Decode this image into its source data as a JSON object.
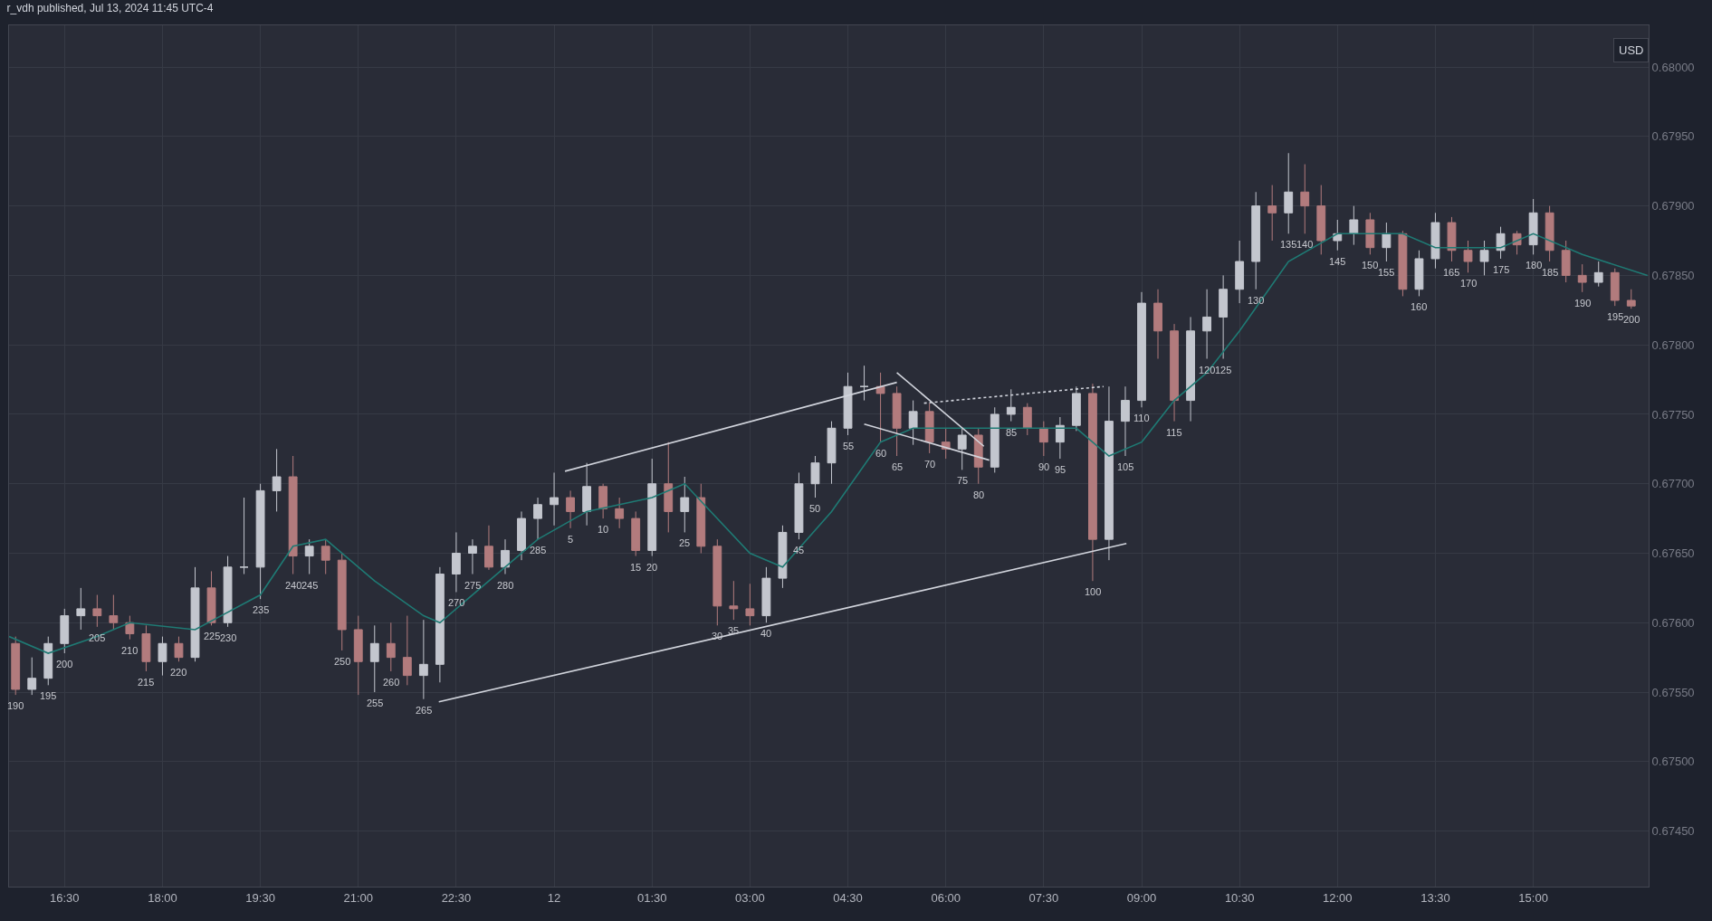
{
  "chart_data": {
    "type": "candlestick",
    "title": "r_vdh published, Jul 13, 2024 11:45 UTC-4",
    "colors": [
      "#b27b7d",
      "#c3c6ce",
      "#c3c6ce",
      "#c3c6ce",
      "#c3c6ce",
      "#b27b7d",
      "#b27b7d",
      "#b27b7d",
      "#b27b7d",
      "#c3c6ce",
      "#b27b7d",
      "#c3c6ce",
      "#b27b7d",
      "#c3c6ce",
      "#c3c6ce",
      "#c3c6ce",
      "#c3c6ce",
      "#b27b7d",
      "#c3c6ce",
      "#b27b7d",
      "#b27b7d",
      "#b27b7d",
      "#c3c6ce",
      "#b27b7d",
      "#b27b7d",
      "#c3c6ce",
      "#c3c6ce",
      "#c3c6ce",
      "#c3c6ce",
      "#b27b7d",
      "#c3c6ce",
      "#c3c6ce",
      "#c3c6ce",
      "#c3c6ce",
      "#b27b7d",
      "#c3c6ce",
      "#b27b7d",
      "#b27b7d",
      "#b27b7d",
      "#c3c6ce",
      "#b27b7d",
      "#c3c6ce",
      "#b27b7d",
      "#b27b7d",
      "#b27b7d",
      "#b27b7d",
      "#c3c6ce",
      "#c3c6ce",
      "#c3c6ce",
      "#c3c6ce",
      "#c3c6ce",
      "#c3c6ce",
      "#c3c6ce",
      "#b27b7d",
      "#b27b7d",
      "#c3c6ce",
      "#b27b7d",
      "#b27b7d",
      "#c3c6ce",
      "#b27b7d",
      "#c3c6ce",
      "#c3c6ce",
      "#b27b7d",
      "#b27b7d",
      "#c3c6ce",
      "#c3c6ce",
      "#b27b7d",
      "#c3c6ce",
      "#c3c6ce",
      "#c3c6ce",
      "#b27b7d",
      "#b27b7d",
      "#c3c6ce",
      "#c3c6ce",
      "#c3c6ce",
      "#c3c6ce",
      "#c3c6ce",
      "#b27b7d",
      "#c3c6ce",
      "#b27b7d",
      "#b27b7d",
      "#c3c6ce",
      "#c3c6ce",
      "#b27b7d",
      "#c3c6ce",
      "#b27b7d",
      "#c3c6ce",
      "#c3c6ce",
      "#b27b7d",
      "#b27b7d",
      "#c3c6ce",
      "#c3c6ce",
      "#b27b7d",
      "#c3c6ce",
      "#b27b7d",
      "#b27b7d",
      "#b27b7d",
      "#c3c6ce",
      "#b27b7d",
      "#b27b7d"
    ],
    "x": [
      "2024-07-11T15:45",
      "2024-07-11T16:00",
      "2024-07-11T16:15",
      "2024-07-11T16:30",
      "2024-07-11T16:45",
      "2024-07-11T17:00",
      "2024-07-11T17:15",
      "2024-07-11T17:30",
      "2024-07-11T17:45",
      "2024-07-11T18:00",
      "2024-07-11T18:15",
      "2024-07-11T18:30",
      "2024-07-11T18:45",
      "2024-07-11T19:00",
      "2024-07-11T19:15",
      "2024-07-11T19:30",
      "2024-07-11T19:45",
      "2024-07-11T20:00",
      "2024-07-11T20:15",
      "2024-07-11T20:30",
      "2024-07-11T20:45",
      "2024-07-11T21:00",
      "2024-07-11T21:15",
      "2024-07-11T21:30",
      "2024-07-11T21:45",
      "2024-07-11T22:00",
      "2024-07-11T22:15",
      "2024-07-11T22:30",
      "2024-07-11T22:45",
      "2024-07-11T23:00",
      "2024-07-11T23:15",
      "2024-07-11T23:30",
      "2024-07-11T23:45",
      "2024-07-12T00:00",
      "2024-07-12T00:15",
      "2024-07-12T00:30",
      "2024-07-12T00:45",
      "2024-07-12T01:00",
      "2024-07-12T01:15",
      "2024-07-12T01:30",
      "2024-07-12T01:45",
      "2024-07-12T02:00",
      "2024-07-12T02:15",
      "2024-07-12T02:30",
      "2024-07-12T02:45",
      "2024-07-12T03:00",
      "2024-07-12T03:15",
      "2024-07-12T03:30",
      "2024-07-12T03:45",
      "2024-07-12T04:00",
      "2024-07-12T04:15",
      "2024-07-12T04:30",
      "2024-07-12T04:45",
      "2024-07-12T05:00",
      "2024-07-12T05:15",
      "2024-07-12T05:30",
      "2024-07-12T05:45",
      "2024-07-12T06:00",
      "2024-07-12T06:15",
      "2024-07-12T06:30",
      "2024-07-12T06:45",
      "2024-07-12T07:00",
      "2024-07-12T07:15",
      "2024-07-12T07:30",
      "2024-07-12T07:45",
      "2024-07-12T08:00",
      "2024-07-12T08:15",
      "2024-07-12T08:30",
      "2024-07-12T08:45",
      "2024-07-12T09:00",
      "2024-07-12T09:15",
      "2024-07-12T09:30",
      "2024-07-12T09:45",
      "2024-07-12T10:00",
      "2024-07-12T10:15",
      "2024-07-12T10:30",
      "2024-07-12T10:45",
      "2024-07-12T11:00",
      "2024-07-12T11:15",
      "2024-07-12T11:30",
      "2024-07-12T11:45",
      "2024-07-12T12:00",
      "2024-07-12T12:15",
      "2024-07-12T12:30",
      "2024-07-12T12:45",
      "2024-07-12T13:00",
      "2024-07-12T13:15",
      "2024-07-12T13:30",
      "2024-07-12T13:45",
      "2024-07-12T14:00",
      "2024-07-12T14:15",
      "2024-07-12T14:30",
      "2024-07-12T14:45",
      "2024-07-12T15:00",
      "2024-07-12T15:15",
      "2024-07-12T15:30",
      "2024-07-12T15:45",
      "2024-07-12T16:00",
      "2024-07-12T16:15",
      "2024-07-12T16:30"
    ],
    "ohlc": [
      [
        0.67585,
        0.6759,
        0.67548,
        0.67552
      ],
      [
        0.67552,
        0.67575,
        0.67548,
        0.6756
      ],
      [
        0.6756,
        0.6759,
        0.67555,
        0.67585
      ],
      [
        0.67585,
        0.6761,
        0.67578,
        0.67605
      ],
      [
        0.67605,
        0.67625,
        0.67595,
        0.6761
      ],
      [
        0.6761,
        0.6762,
        0.67597,
        0.67605
      ],
      [
        0.67605,
        0.6762,
        0.67595,
        0.676
      ],
      [
        0.676,
        0.67605,
        0.67588,
        0.67592
      ],
      [
        0.67592,
        0.67598,
        0.67565,
        0.67572
      ],
      [
        0.67572,
        0.6759,
        0.67562,
        0.67585
      ],
      [
        0.67585,
        0.6759,
        0.67572,
        0.67575
      ],
      [
        0.67575,
        0.6764,
        0.67572,
        0.67625
      ],
      [
        0.67625,
        0.67637,
        0.67598,
        0.676
      ],
      [
        0.676,
        0.67648,
        0.67597,
        0.6764
      ],
      [
        0.6764,
        0.6769,
        0.67635,
        0.6764
      ],
      [
        0.6764,
        0.677,
        0.67617,
        0.67695
      ],
      [
        0.67695,
        0.67725,
        0.6768,
        0.67705
      ],
      [
        0.67705,
        0.6772,
        0.67635,
        0.67648
      ],
      [
        0.67648,
        0.6766,
        0.67635,
        0.67655
      ],
      [
        0.67655,
        0.6766,
        0.67635,
        0.67645
      ],
      [
        0.67645,
        0.6765,
        0.6758,
        0.67595
      ],
      [
        0.67595,
        0.67605,
        0.67548,
        0.67572
      ],
      [
        0.67572,
        0.67598,
        0.6755,
        0.67585
      ],
      [
        0.67585,
        0.676,
        0.67565,
        0.67575
      ],
      [
        0.67575,
        0.67605,
        0.67555,
        0.67562
      ],
      [
        0.67562,
        0.67602,
        0.67545,
        0.6757
      ],
      [
        0.6757,
        0.6764,
        0.67557,
        0.67635
      ],
      [
        0.67635,
        0.67665,
        0.67622,
        0.6765
      ],
      [
        0.6765,
        0.6766,
        0.67635,
        0.67655
      ],
      [
        0.67655,
        0.6767,
        0.67638,
        0.6764
      ],
      [
        0.6764,
        0.6766,
        0.67635,
        0.67652
      ],
      [
        0.67652,
        0.6768,
        0.67645,
        0.67675
      ],
      [
        0.67675,
        0.6769,
        0.6766,
        0.67685
      ],
      [
        0.67685,
        0.67708,
        0.6767,
        0.6769
      ],
      [
        0.6769,
        0.67695,
        0.67668,
        0.6768
      ],
      [
        0.6768,
        0.67715,
        0.6767,
        0.67698
      ],
      [
        0.67698,
        0.677,
        0.67675,
        0.67682
      ],
      [
        0.67682,
        0.6769,
        0.67668,
        0.67675
      ],
      [
        0.67675,
        0.6768,
        0.67648,
        0.67652
      ],
      [
        0.67652,
        0.67718,
        0.67648,
        0.677
      ],
      [
        0.677,
        0.6773,
        0.67665,
        0.6768
      ],
      [
        0.6768,
        0.67705,
        0.67665,
        0.6769
      ],
      [
        0.6769,
        0.677,
        0.6765,
        0.67655
      ],
      [
        0.67655,
        0.6766,
        0.67598,
        0.67612
      ],
      [
        0.67612,
        0.6763,
        0.67602,
        0.6761
      ],
      [
        0.6761,
        0.67628,
        0.67598,
        0.67605
      ],
      [
        0.67605,
        0.6764,
        0.676,
        0.67632
      ],
      [
        0.67632,
        0.6767,
        0.67625,
        0.67665
      ],
      [
        0.67665,
        0.67708,
        0.6766,
        0.677
      ],
      [
        0.677,
        0.6772,
        0.6769,
        0.67715
      ],
      [
        0.67715,
        0.67745,
        0.677,
        0.6774
      ],
      [
        0.6774,
        0.6778,
        0.67735,
        0.6777
      ],
      [
        0.6777,
        0.67785,
        0.6776,
        0.6777
      ],
      [
        0.6777,
        0.6778,
        0.6773,
        0.67765
      ],
      [
        0.67765,
        0.6777,
        0.6772,
        0.6774
      ],
      [
        0.6774,
        0.6776,
        0.67728,
        0.67752
      ],
      [
        0.67752,
        0.67758,
        0.67722,
        0.6773
      ],
      [
        0.6773,
        0.6774,
        0.67718,
        0.67725
      ],
      [
        0.67725,
        0.6774,
        0.6771,
        0.67735
      ],
      [
        0.67735,
        0.6774,
        0.677,
        0.67712
      ],
      [
        0.67712,
        0.67755,
        0.67708,
        0.6775
      ],
      [
        0.6775,
        0.67768,
        0.67745,
        0.67755
      ],
      [
        0.67755,
        0.67758,
        0.67735,
        0.6774
      ],
      [
        0.6774,
        0.67745,
        0.6772,
        0.6773
      ],
      [
        0.6773,
        0.67748,
        0.67718,
        0.67742
      ],
      [
        0.67742,
        0.6777,
        0.67738,
        0.67765
      ],
      [
        0.67765,
        0.67772,
        0.6763,
        0.6766
      ],
      [
        0.6766,
        0.6777,
        0.67645,
        0.67745
      ],
      [
        0.67745,
        0.6777,
        0.6772,
        0.6776
      ],
      [
        0.6776,
        0.67838,
        0.67755,
        0.6783
      ],
      [
        0.6783,
        0.6784,
        0.6779,
        0.6781
      ],
      [
        0.6781,
        0.67815,
        0.67745,
        0.6776
      ],
      [
        0.6776,
        0.6782,
        0.67745,
        0.6781
      ],
      [
        0.6781,
        0.6784,
        0.6779,
        0.6782
      ],
      [
        0.6782,
        0.6785,
        0.6779,
        0.6784
      ],
      [
        0.6784,
        0.67875,
        0.6783,
        0.6786
      ],
      [
        0.6786,
        0.6791,
        0.6784,
        0.679
      ],
      [
        0.679,
        0.67915,
        0.67875,
        0.67895
      ],
      [
        0.67895,
        0.67938,
        0.6788,
        0.6791
      ],
      [
        0.6791,
        0.6793,
        0.6788,
        0.679
      ],
      [
        0.679,
        0.67915,
        0.67865,
        0.67875
      ],
      [
        0.67875,
        0.6789,
        0.67868,
        0.6788
      ],
      [
        0.6788,
        0.679,
        0.67872,
        0.6789
      ],
      [
        0.6789,
        0.67895,
        0.67865,
        0.6787
      ],
      [
        0.6787,
        0.67888,
        0.6786,
        0.6788
      ],
      [
        0.6788,
        0.67882,
        0.67835,
        0.6784
      ],
      [
        0.6784,
        0.67868,
        0.67835,
        0.67862
      ],
      [
        0.67862,
        0.67895,
        0.67855,
        0.67888
      ],
      [
        0.67888,
        0.67892,
        0.6786,
        0.67868
      ],
      [
        0.67868,
        0.67875,
        0.67852,
        0.6786
      ],
      [
        0.6786,
        0.67875,
        0.6785,
        0.67868
      ],
      [
        0.67868,
        0.67885,
        0.67862,
        0.6788
      ],
      [
        0.6788,
        0.67882,
        0.67865,
        0.67872
      ],
      [
        0.67872,
        0.67905,
        0.67865,
        0.67895
      ],
      [
        0.67895,
        0.679,
        0.6786,
        0.67868
      ],
      [
        0.67868,
        0.67875,
        0.67845,
        0.6785
      ],
      [
        0.6785,
        0.67858,
        0.67838,
        0.67845
      ],
      [
        0.67845,
        0.6786,
        0.67842,
        0.67852
      ],
      [
        0.67852,
        0.67855,
        0.67828,
        0.67832
      ],
      [
        0.67832,
        0.6784,
        0.67826,
        0.67828
      ]
    ],
    "series": [
      {
        "type": "line",
        "color": "#1f7a74",
        "x": [
          "2024-07-11T15:39",
          "2024-07-11T16:15",
          "2024-07-11T17:00",
          "2024-07-11T17:30",
          "2024-07-11T18:30",
          "2024-07-11T19:30",
          "2024-07-11T20:00",
          "2024-07-11T20:30",
          "2024-07-11T21:15",
          "2024-07-11T22:00",
          "2024-07-11T22:15",
          "2024-07-11T23:00",
          "2024-07-11T23:45",
          "2024-07-12T00:30",
          "2024-07-12T01:30",
          "2024-07-12T02:00",
          "2024-07-12T03:00",
          "2024-07-12T03:30",
          "2024-07-12T04:15",
          "2024-07-12T05:00",
          "2024-07-12T05:30",
          "2024-07-12T06:30",
          "2024-07-12T07:30",
          "2024-07-12T08:00",
          "2024-07-12T08:30",
          "2024-07-12T09:00",
          "2024-07-12T09:30",
          "2024-07-12T10:00",
          "2024-07-12T10:30",
          "2024-07-12T11:15",
          "2024-07-12T12:00",
          "2024-07-12T13:00",
          "2024-07-12T13:30",
          "2024-07-12T14:30",
          "2024-07-12T15:00",
          "2024-07-12T15:45",
          "2024-07-12T16:45"
        ],
        "values": [
          0.6759,
          0.67578,
          0.6759,
          0.676,
          0.67595,
          0.6762,
          0.67655,
          0.6766,
          0.6763,
          0.67605,
          0.676,
          0.6763,
          0.6766,
          0.6768,
          0.6769,
          0.677,
          0.6765,
          0.6764,
          0.6768,
          0.6773,
          0.6774,
          0.6774,
          0.6774,
          0.6774,
          0.6772,
          0.6773,
          0.6776,
          0.6778,
          0.6781,
          0.6786,
          0.6788,
          0.6788,
          0.6787,
          0.6787,
          0.6788,
          0.67865,
          0.6785
        ]
      },
      {
        "type": "line",
        "color": "#d1d4dc",
        "x": [
          "2024-07-11T22:14",
          "2024-07-12T08:46"
        ],
        "values": [
          0.67543,
          0.67657
        ]
      },
      {
        "type": "line",
        "color": "#d1d4dc",
        "x": [
          "2024-07-12T00:10",
          "2024-07-12T05:15"
        ],
        "values": [
          0.67709,
          0.67773
        ]
      },
      {
        "type": "line",
        "color": "#d1d4dc",
        "x": [
          "2024-07-12T05:15",
          "2024-07-12T06:35"
        ],
        "values": [
          0.6778,
          0.67727
        ]
      },
      {
        "type": "line",
        "color": "#d1d4dc",
        "x": [
          "2024-07-12T04:45",
          "2024-07-12T06:40"
        ],
        "values": [
          0.67743,
          0.67717
        ]
      },
      {
        "type": "line",
        "color": "#d1d4dc",
        "line_style": "dotted",
        "x": [
          "2024-07-12T05:40",
          "2024-07-12T08:25"
        ],
        "values": [
          0.67758,
          0.6777
        ]
      }
    ],
    "xlim": [
      "2024-07-11T15:39",
      "2024-07-12T16:46"
    ],
    "xticks": [
      {
        "value": "2024-07-11T16:30",
        "label": "16:30"
      },
      {
        "value": "2024-07-11T18:00",
        "label": "18:00"
      },
      {
        "value": "2024-07-11T19:30",
        "label": "19:30"
      },
      {
        "value": "2024-07-11T21:00",
        "label": "21:00"
      },
      {
        "value": "2024-07-11T22:30",
        "label": "22:30"
      },
      {
        "value": "2024-07-12T00:00",
        "label": "12"
      },
      {
        "value": "2024-07-12T01:30",
        "label": "01:30"
      },
      {
        "value": "2024-07-12T03:00",
        "label": "03:00"
      },
      {
        "value": "2024-07-12T04:30",
        "label": "04:30"
      },
      {
        "value": "2024-07-12T06:00",
        "label": "06:00"
      },
      {
        "value": "2024-07-12T07:30",
        "label": "07:30"
      },
      {
        "value": "2024-07-12T09:00",
        "label": "09:00"
      },
      {
        "value": "2024-07-12T10:30",
        "label": "10:30"
      },
      {
        "value": "2024-07-12T12:00",
        "label": "12:00"
      },
      {
        "value": "2024-07-12T13:30",
        "label": "13:30"
      },
      {
        "value": "2024-07-12T15:00",
        "label": "15:00"
      }
    ],
    "ylim": [
      0.6741,
      0.6803
    ],
    "yticks": [
      {
        "value": 0.6745,
        "label": "0.67450"
      },
      {
        "value": 0.675,
        "label": "0.67500"
      },
      {
        "value": 0.6755,
        "label": "0.67550"
      },
      {
        "value": 0.676,
        "label": "0.67600"
      },
      {
        "value": 0.6765,
        "label": "0.67650"
      },
      {
        "value": 0.677,
        "label": "0.67700"
      },
      {
        "value": 0.6775,
        "label": "0.67750"
      },
      {
        "value": 0.678,
        "label": "0.67800"
      },
      {
        "value": 0.6785,
        "label": "0.67850"
      },
      {
        "value": 0.679,
        "label": "0.67900"
      },
      {
        "value": 0.6795,
        "label": "0.67950"
      },
      {
        "value": 0.68,
        "label": "0.68000"
      }
    ],
    "grid": true,
    "annotations": [
      "USD",
      {
        "text": "190",
        "x": "2024-07-11T15:45",
        "y": 0.67548
      },
      {
        "text": "195",
        "x": "2024-07-11T16:15",
        "y": 0.67555
      },
      {
        "text": "200",
        "x": "2024-07-11T16:30",
        "y": 0.67578
      },
      {
        "text": "205",
        "x": "2024-07-11T17:00",
        "y": 0.67597
      },
      {
        "text": "210",
        "x": "2024-07-11T17:30",
        "y": 0.67588
      },
      {
        "text": "215",
        "x": "2024-07-11T17:45",
        "y": 0.67565
      },
      {
        "text": "220",
        "x": "2024-07-11T18:15",
        "y": 0.67572
      },
      {
        "text": "225",
        "x": "2024-07-11T18:45",
        "y": 0.67598
      },
      {
        "text": "230",
        "x": "2024-07-11T19:00",
        "y": 0.67597
      },
      {
        "text": "235",
        "x": "2024-07-11T19:30",
        "y": 0.67617
      },
      {
        "text": "240",
        "x": "2024-07-11T20:00",
        "y": 0.67635
      },
      {
        "text": "245",
        "x": "2024-07-11T20:15",
        "y": 0.67635
      },
      {
        "text": "250",
        "x": "2024-07-11T20:45",
        "y": 0.6758
      },
      {
        "text": "255",
        "x": "2024-07-11T21:15",
        "y": 0.6755
      },
      {
        "text": "260",
        "x": "2024-07-11T21:30",
        "y": 0.67565
      },
      {
        "text": "265",
        "x": "2024-07-11T22:00",
        "y": 0.67545
      },
      {
        "text": "270",
        "x": "2024-07-11T22:30",
        "y": 0.67622
      },
      {
        "text": "275",
        "x": "2024-07-11T22:45",
        "y": 0.67635
      },
      {
        "text": "280",
        "x": "2024-07-11T23:15",
        "y": 0.67635
      },
      {
        "text": "285",
        "x": "2024-07-11T23:45",
        "y": 0.6766
      },
      {
        "text": "5",
        "x": "2024-07-12T00:15",
        "y": 0.67668
      },
      {
        "text": "10",
        "x": "2024-07-12T00:45",
        "y": 0.67675
      },
      {
        "text": "15",
        "x": "2024-07-12T01:15",
        "y": 0.67648
      },
      {
        "text": "20",
        "x": "2024-07-12T01:30",
        "y": 0.67648
      },
      {
        "text": "25",
        "x": "2024-07-12T02:00",
        "y": 0.67665
      },
      {
        "text": "30",
        "x": "2024-07-12T02:30",
        "y": 0.67598
      },
      {
        "text": "35",
        "x": "2024-07-12T02:45",
        "y": 0.67602
      },
      {
        "text": "40",
        "x": "2024-07-12T03:15",
        "y": 0.676
      },
      {
        "text": "45",
        "x": "2024-07-12T03:45",
        "y": 0.6766
      },
      {
        "text": "50",
        "x": "2024-07-12T04:00",
        "y": 0.6769
      },
      {
        "text": "55",
        "x": "2024-07-12T04:30",
        "y": 0.67735
      },
      {
        "text": "60",
        "x": "2024-07-12T05:00",
        "y": 0.6773
      },
      {
        "text": "65",
        "x": "2024-07-12T05:15",
        "y": 0.6772
      },
      {
        "text": "70",
        "x": "2024-07-12T05:45",
        "y": 0.67722
      },
      {
        "text": "75",
        "x": "2024-07-12T06:15",
        "y": 0.6771
      },
      {
        "text": "80",
        "x": "2024-07-12T06:30",
        "y": 0.677
      },
      {
        "text": "85",
        "x": "2024-07-12T07:00",
        "y": 0.67745
      },
      {
        "text": "90",
        "x": "2024-07-12T07:30",
        "y": 0.6772
      },
      {
        "text": "95",
        "x": "2024-07-12T07:45",
        "y": 0.67718
      },
      {
        "text": "100",
        "x": "2024-07-12T08:15",
        "y": 0.6763
      },
      {
        "text": "105",
        "x": "2024-07-12T08:45",
        "y": 0.6772
      },
      {
        "text": "110",
        "x": "2024-07-12T09:00",
        "y": 0.67755
      },
      {
        "text": "115",
        "x": "2024-07-12T09:30",
        "y": 0.67745
      },
      {
        "text": "120",
        "x": "2024-07-12T10:00",
        "y": 0.6779
      },
      {
        "text": "125",
        "x": "2024-07-12T10:15",
        "y": 0.6779
      },
      {
        "text": "130",
        "x": "2024-07-12T10:45",
        "y": 0.6784
      },
      {
        "text": "135",
        "x": "2024-07-12T11:15",
        "y": 0.6788
      },
      {
        "text": "140",
        "x": "2024-07-12T11:30",
        "y": 0.6788
      },
      {
        "text": "145",
        "x": "2024-07-12T12:00",
        "y": 0.67868
      },
      {
        "text": "150",
        "x": "2024-07-12T12:30",
        "y": 0.67865
      },
      {
        "text": "155",
        "x": "2024-07-12T12:45",
        "y": 0.6786
      },
      {
        "text": "160",
        "x": "2024-07-12T13:15",
        "y": 0.67835
      },
      {
        "text": "165",
        "x": "2024-07-12T13:45",
        "y": 0.6786
      },
      {
        "text": "170",
        "x": "2024-07-12T14:00",
        "y": 0.67852
      },
      {
        "text": "175",
        "x": "2024-07-12T14:30",
        "y": 0.67862
      },
      {
        "text": "180",
        "x": "2024-07-12T15:00",
        "y": 0.67865
      },
      {
        "text": "185",
        "x": "2024-07-12T15:15",
        "y": 0.6786
      },
      {
        "text": "190",
        "x": "2024-07-12T15:45",
        "y": 0.67838
      },
      {
        "text": "195",
        "x": "2024-07-12T16:15",
        "y": 0.67828
      },
      {
        "text": "200",
        "x": "2024-07-12T16:30",
        "y": 0.67826
      }
    ]
  }
}
